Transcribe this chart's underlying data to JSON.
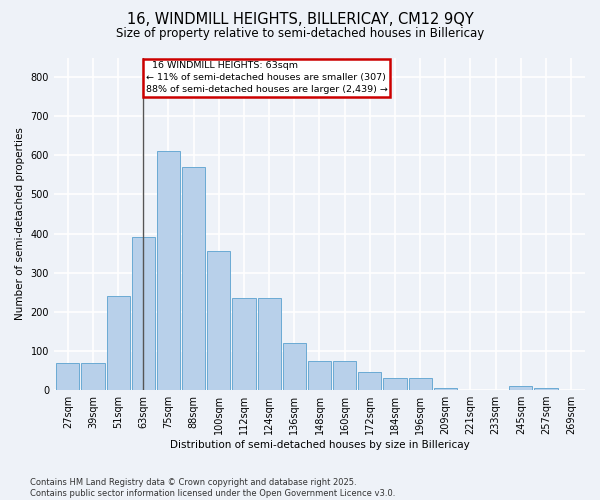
{
  "title": "16, WINDMILL HEIGHTS, BILLERICAY, CM12 9QY",
  "subtitle": "Size of property relative to semi-detached houses in Billericay",
  "xlabel": "Distribution of semi-detached houses by size in Billericay",
  "ylabel": "Number of semi-detached properties",
  "bins": [
    "27sqm",
    "39sqm",
    "51sqm",
    "63sqm",
    "75sqm",
    "88sqm",
    "100sqm",
    "112sqm",
    "124sqm",
    "136sqm",
    "148sqm",
    "160sqm",
    "172sqm",
    "184sqm",
    "196sqm",
    "209sqm",
    "221sqm",
    "233sqm",
    "245sqm",
    "257sqm",
    "269sqm"
  ],
  "values": [
    68,
    68,
    240,
    390,
    610,
    570,
    355,
    235,
    235,
    120,
    75,
    75,
    45,
    30,
    30,
    6,
    0,
    0,
    10,
    5,
    0
  ],
  "bar_color": "#b8d0ea",
  "bar_edge_color": "#6aaad4",
  "marker_bin_index": 3,
  "marker_label": "16 WINDMILL HEIGHTS: 63sqm",
  "marker_line_color": "#555555",
  "annotation_smaller_pct": "11%",
  "annotation_smaller_n": "307",
  "annotation_larger_pct": "88%",
  "annotation_larger_n": "2,439",
  "annotation_box_facecolor": "#ffffff",
  "annotation_box_edgecolor": "#cc0000",
  "footer_line1": "Contains HM Land Registry data © Crown copyright and database right 2025.",
  "footer_line2": "Contains public sector information licensed under the Open Government Licence v3.0.",
  "ylim": [
    0,
    850
  ],
  "yticks": [
    0,
    100,
    200,
    300,
    400,
    500,
    600,
    700,
    800
  ],
  "background_color": "#eef2f8",
  "grid_color": "#ffffff",
  "title_fontsize": 10.5,
  "subtitle_fontsize": 8.5,
  "axis_label_fontsize": 7.5,
  "tick_fontsize": 7,
  "annotation_fontsize": 6.8,
  "footer_fontsize": 6.0
}
